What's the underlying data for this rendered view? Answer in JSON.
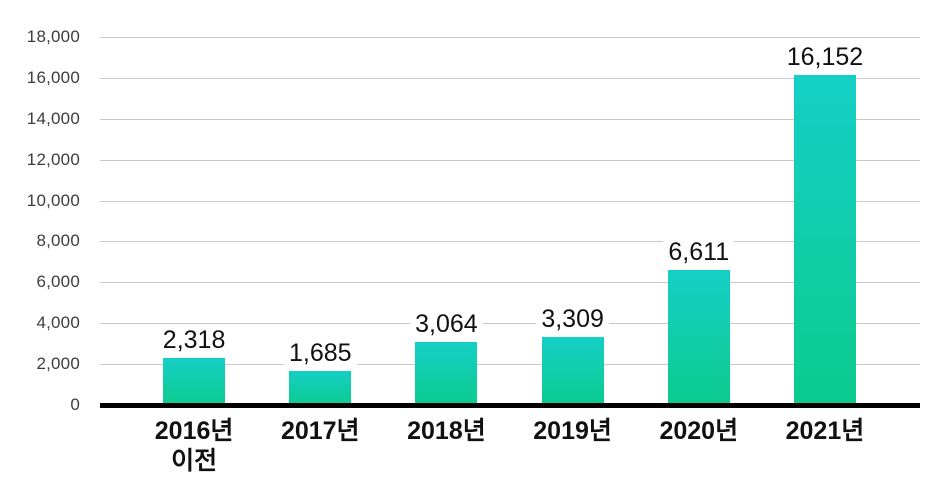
{
  "chart_data": {
    "type": "bar",
    "title": "",
    "xlabel": "",
    "ylabel": "",
    "categories": [
      "2016년\n이전",
      "2017년",
      "2018년",
      "2019년",
      "2020년",
      "2021년"
    ],
    "values": [
      2318,
      1685,
      3064,
      3309,
      6611,
      16152
    ],
    "value_labels": [
      "2,318",
      "1,685",
      "3,064",
      "3,309",
      "6,611",
      "16,152"
    ],
    "ylim": [
      0,
      18000
    ],
    "y_ticks": [
      0,
      2000,
      4000,
      6000,
      8000,
      10000,
      12000,
      14000,
      16000,
      18000
    ],
    "y_tick_labels": [
      "0",
      "2,000",
      "4,000",
      "6,000",
      "8,000",
      "10,000",
      "12,000",
      "14,000",
      "16,000",
      "18,000"
    ],
    "grid": "horizontal",
    "legend": "none",
    "colors": {
      "bar_gradient_top": "#15CFC6",
      "bar_gradient_bottom": "#0CCB8E",
      "gridline": "#C9C9C9",
      "axis_line": "#000000",
      "tick_label": "#3D3D3D",
      "category_label": "#111111",
      "value_label": "#111111",
      "background": "#FFFFFF"
    }
  }
}
